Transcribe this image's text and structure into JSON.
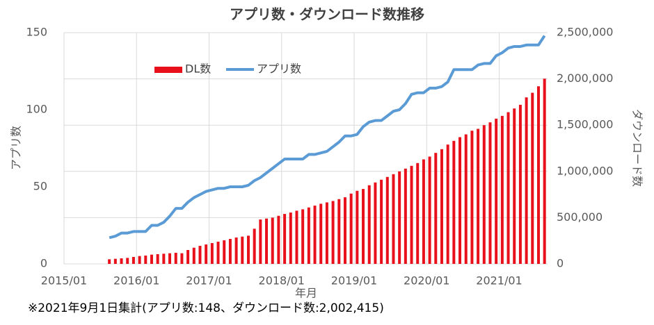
{
  "chart_data": {
    "type": "bar_line",
    "title": "アプリ数・ダウンロード数推移",
    "xlabel": "年月",
    "ylabel": "アプリ数",
    "y2label": "ダウンロード数",
    "footnote": "※2021年9月1日集計(アプリ数:148、ダウンロード数:2,002,415)",
    "x": [
      "2015/08",
      "2015/09",
      "2015/10",
      "2015/11",
      "2015/12",
      "2016/01",
      "2016/02",
      "2016/03",
      "2016/04",
      "2016/05",
      "2016/06",
      "2016/07",
      "2016/08",
      "2016/09",
      "2016/10",
      "2016/11",
      "2016/12",
      "2017/01",
      "2017/02",
      "2017/03",
      "2017/04",
      "2017/05",
      "2017/06",
      "2017/07",
      "2017/08",
      "2017/09",
      "2017/10",
      "2017/11",
      "2017/12",
      "2018/01",
      "2018/02",
      "2018/03",
      "2018/04",
      "2018/05",
      "2018/06",
      "2018/07",
      "2018/08",
      "2018/09",
      "2018/10",
      "2018/11",
      "2018/12",
      "2019/01",
      "2019/02",
      "2019/03",
      "2019/04",
      "2019/05",
      "2019/06",
      "2019/07",
      "2019/08",
      "2019/09",
      "2019/10",
      "2019/11",
      "2019/12",
      "2020/01",
      "2020/02",
      "2020/03",
      "2020/04",
      "2020/05",
      "2020/06",
      "2020/07",
      "2020/08",
      "2020/09",
      "2020/10",
      "2020/11",
      "2020/12",
      "2021/01",
      "2021/02",
      "2021/03",
      "2021/04",
      "2021/05",
      "2021/06",
      "2021/07",
      "2021/08"
    ],
    "series": [
      {
        "name": "DL数",
        "type": "bar",
        "axis": "y2",
        "color": "#e8101a",
        "values": [
          50000,
          55000,
          60000,
          65000,
          75000,
          85000,
          90000,
          100000,
          105000,
          110000,
          115000,
          120000,
          115000,
          150000,
          175000,
          195000,
          210000,
          225000,
          240000,
          255000,
          270000,
          285000,
          295000,
          305000,
          380000,
          480000,
          490000,
          500000,
          520000,
          540000,
          555000,
          575000,
          590000,
          610000,
          630000,
          650000,
          665000,
          680000,
          700000,
          720000,
          760000,
          790000,
          810000,
          850000,
          880000,
          910000,
          940000,
          970000,
          1000000,
          1030000,
          1060000,
          1090000,
          1130000,
          1160000,
          1200000,
          1240000,
          1290000,
          1330000,
          1370000,
          1400000,
          1440000,
          1460000,
          1500000,
          1530000,
          1570000,
          1600000,
          1640000,
          1680000,
          1720000,
          1800000,
          1850000,
          1920000,
          2002415
        ]
      },
      {
        "name": "アプリ数",
        "type": "line",
        "axis": "y",
        "color": "#5b9bd5",
        "values": [
          17,
          18,
          20,
          20,
          21,
          21,
          21,
          25,
          25,
          27,
          31,
          36,
          36,
          40,
          43,
          45,
          47,
          48,
          49,
          49,
          50,
          50,
          50,
          51,
          54,
          56,
          59,
          62,
          65,
          68,
          68,
          68,
          68,
          71,
          71,
          72,
          73,
          76,
          79,
          83,
          83,
          84,
          89,
          92,
          93,
          93,
          96,
          99,
          100,
          104,
          110,
          111,
          111,
          114,
          114,
          115,
          118,
          126,
          126,
          126,
          126,
          129,
          130,
          130,
          135,
          137,
          140,
          141,
          141,
          142,
          142,
          142,
          148
        ]
      }
    ],
    "xlim": [
      "2015/01",
      "2021/09"
    ],
    "xticks": [
      "2015/01",
      "2016/01",
      "2017/01",
      "2018/01",
      "2019/01",
      "2020/01",
      "2021/01"
    ],
    "ylim": [
      0,
      150
    ],
    "yticks": [
      0,
      50,
      100,
      150
    ],
    "y2lim": [
      0,
      2500000
    ],
    "y2ticks": [
      0,
      {
        "value": 500000,
        "label": "500,000"
      },
      {
        "value": 1000000,
        "label": "1,000,000"
      },
      {
        "value": 1500000,
        "label": "1,500,000"
      },
      {
        "value": 2000000,
        "label": "2,000,000"
      },
      {
        "value": 2500000,
        "label": "2,500,000"
      }
    ],
    "grid": true,
    "legend": "top"
  }
}
